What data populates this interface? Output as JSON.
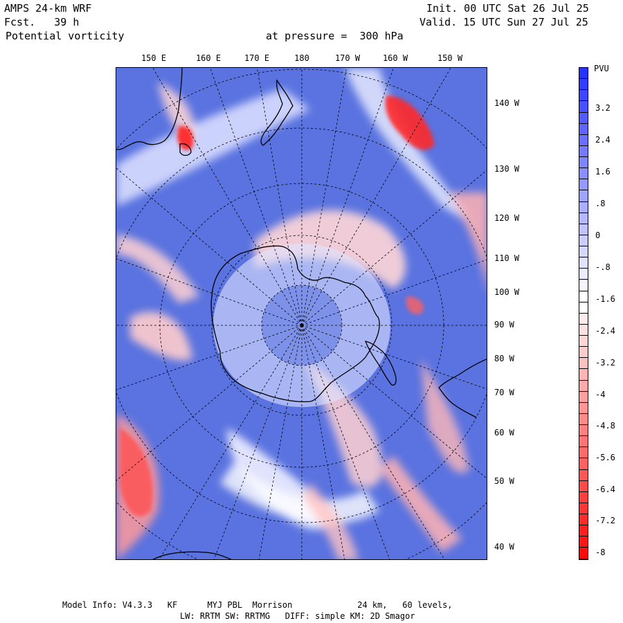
{
  "header": {
    "model": "AMPS 24-km WRF",
    "forecast": "Fcst.   39 h",
    "field": "Potential vorticity",
    "level": "at pressure =  300 hPa",
    "init": "Init. 00 UTC Sat 26 Jul 25",
    "valid": "Valid. 15 UTC Sun 27 Jul 25"
  },
  "map": {
    "top_labels": [
      "150 E",
      "160 E",
      "170 E",
      "180",
      "170 W",
      "160 W",
      "150 W"
    ],
    "right_labels": [
      "140 W",
      "130 W",
      "120 W",
      "110 W",
      "100 W",
      "90 W",
      "80 W",
      "70 W",
      "60 W",
      "50 W",
      "40 W"
    ],
    "colors": {
      "positive": "#2b3dff",
      "negative": "#ff1010",
      "neutral": "#ffffff",
      "mid_blue": "#5a73e0"
    }
  },
  "colorbar": {
    "unit": "PVU",
    "labels": [
      "3.2",
      "2.4",
      "1.6",
      ".8",
      "0",
      "-.8",
      "-1.6",
      "-2.4",
      "-3.2",
      "-4",
      "-4.8",
      "-5.6",
      "-6.4",
      "-7.2",
      "-8"
    ]
  },
  "footer": {
    "line1": "Model Info: V4.3.3   KF      MYJ PBL  Morrison             24 km,   60 levels,",
    "line2": "LW: RRTM SW: RRTMG   DIFF: simple KM: 2D Smagor"
  }
}
